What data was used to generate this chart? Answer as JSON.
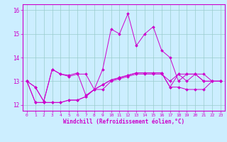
{
  "xlabel": "Windchill (Refroidissement éolien,°C)",
  "bg_color": "#cceeff",
  "grid_color": "#99cccc",
  "line_color": "#cc00cc",
  "xlim": [
    -0.5,
    23.5
  ],
  "ylim": [
    11.75,
    16.25
  ],
  "yticks": [
    12,
    13,
    14,
    15,
    16
  ],
  "xticks": [
    0,
    1,
    2,
    3,
    4,
    5,
    6,
    7,
    8,
    9,
    10,
    11,
    12,
    13,
    14,
    15,
    16,
    17,
    18,
    19,
    20,
    21,
    22,
    23
  ],
  "series": [
    [
      13.0,
      12.75,
      12.15,
      13.5,
      13.3,
      13.2,
      13.3,
      13.3,
      12.65,
      12.65,
      13.0,
      13.1,
      13.2,
      13.3,
      13.3,
      13.3,
      13.3,
      13.0,
      13.3,
      13.0,
      13.3,
      13.0,
      13.0,
      13.0
    ],
    [
      13.0,
      12.75,
      12.15,
      13.5,
      13.3,
      13.25,
      13.35,
      12.4,
      12.65,
      13.5,
      15.2,
      15.0,
      15.85,
      14.5,
      15.0,
      15.3,
      14.3,
      14.0,
      13.0,
      13.3,
      13.3,
      13.3,
      13.0,
      13.0
    ],
    [
      13.0,
      12.1,
      12.1,
      12.1,
      12.1,
      12.2,
      12.2,
      12.35,
      12.65,
      12.85,
      13.05,
      13.15,
      13.25,
      13.35,
      13.35,
      13.35,
      13.35,
      12.75,
      12.75,
      12.65,
      12.65,
      12.65,
      13.0,
      13.0
    ],
    [
      13.0,
      12.1,
      12.1,
      12.1,
      12.1,
      12.2,
      12.2,
      12.35,
      12.65,
      12.85,
      13.05,
      13.15,
      13.25,
      13.35,
      13.35,
      13.35,
      13.35,
      12.75,
      13.3,
      13.3,
      13.3,
      13.0,
      13.0,
      13.0
    ]
  ]
}
